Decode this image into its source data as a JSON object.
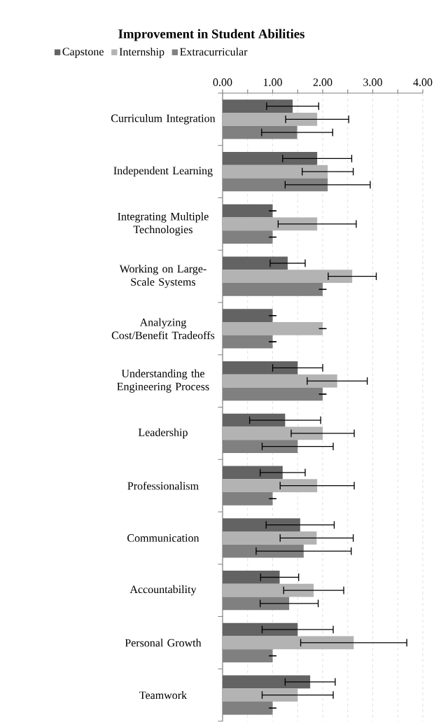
{
  "chart_data": {
    "type": "bar",
    "orientation": "horizontal",
    "title": "Improvement in Student Abilities",
    "categories": [
      "Curriculum Integration",
      "Independent Learning",
      "Integrating Multiple Technologies",
      "Working on Large-Scale Systems",
      "Analyzing Cost/Benefit Tradeoffs",
      "Understanding the Engineering Process",
      "Leadership",
      "Professionalism",
      "Communication",
      "Accountability",
      "Personal Growth",
      "Teamwork"
    ],
    "series": [
      {
        "name": "Capstone",
        "color": "#636363",
        "values": [
          1.4,
          1.89,
          1.0,
          1.3,
          1.0,
          1.5,
          1.25,
          1.2,
          1.55,
          1.14,
          1.5,
          1.75
        ],
        "errors": [
          0.52,
          0.69,
          0,
          0.35,
          0,
          0.5,
          0.71,
          0.45,
          0.68,
          0.38,
          0.71,
          0.5
        ]
      },
      {
        "name": "Internship",
        "color": "#b3b3b3",
        "values": [
          1.89,
          2.1,
          1.89,
          2.59,
          2.0,
          2.29,
          2.0,
          1.89,
          1.88,
          1.82,
          2.62,
          1.5
        ],
        "errors": [
          0.63,
          0.51,
          0.78,
          0.48,
          0,
          0.6,
          0.63,
          0.74,
          0.73,
          0.6,
          1.06,
          0.71
        ]
      },
      {
        "name": "Extracurricular",
        "color": "#808080",
        "values": [
          1.49,
          2.1,
          1.0,
          2.0,
          1.0,
          2.0,
          1.5,
          1.0,
          1.62,
          1.33,
          1.0,
          1.0
        ],
        "errors": [
          0.71,
          0.85,
          0,
          0,
          0,
          0,
          0.71,
          0,
          0.95,
          0.58,
          0,
          0
        ]
      }
    ],
    "xlim": [
      0,
      4
    ],
    "xticks": [
      {
        "value": 0,
        "label": "0.00"
      },
      {
        "value": 0.5,
        "label": null
      },
      {
        "value": 1,
        "label": "1.00"
      },
      {
        "value": 1.5,
        "label": null
      },
      {
        "value": 2,
        "label": "2.00"
      },
      {
        "value": 2.5,
        "label": null
      },
      {
        "value": 3,
        "label": "3.00"
      },
      {
        "value": 3.5,
        "label": null
      },
      {
        "value": 4,
        "label": "4.00"
      }
    ],
    "grid": "x",
    "legend": "top"
  }
}
